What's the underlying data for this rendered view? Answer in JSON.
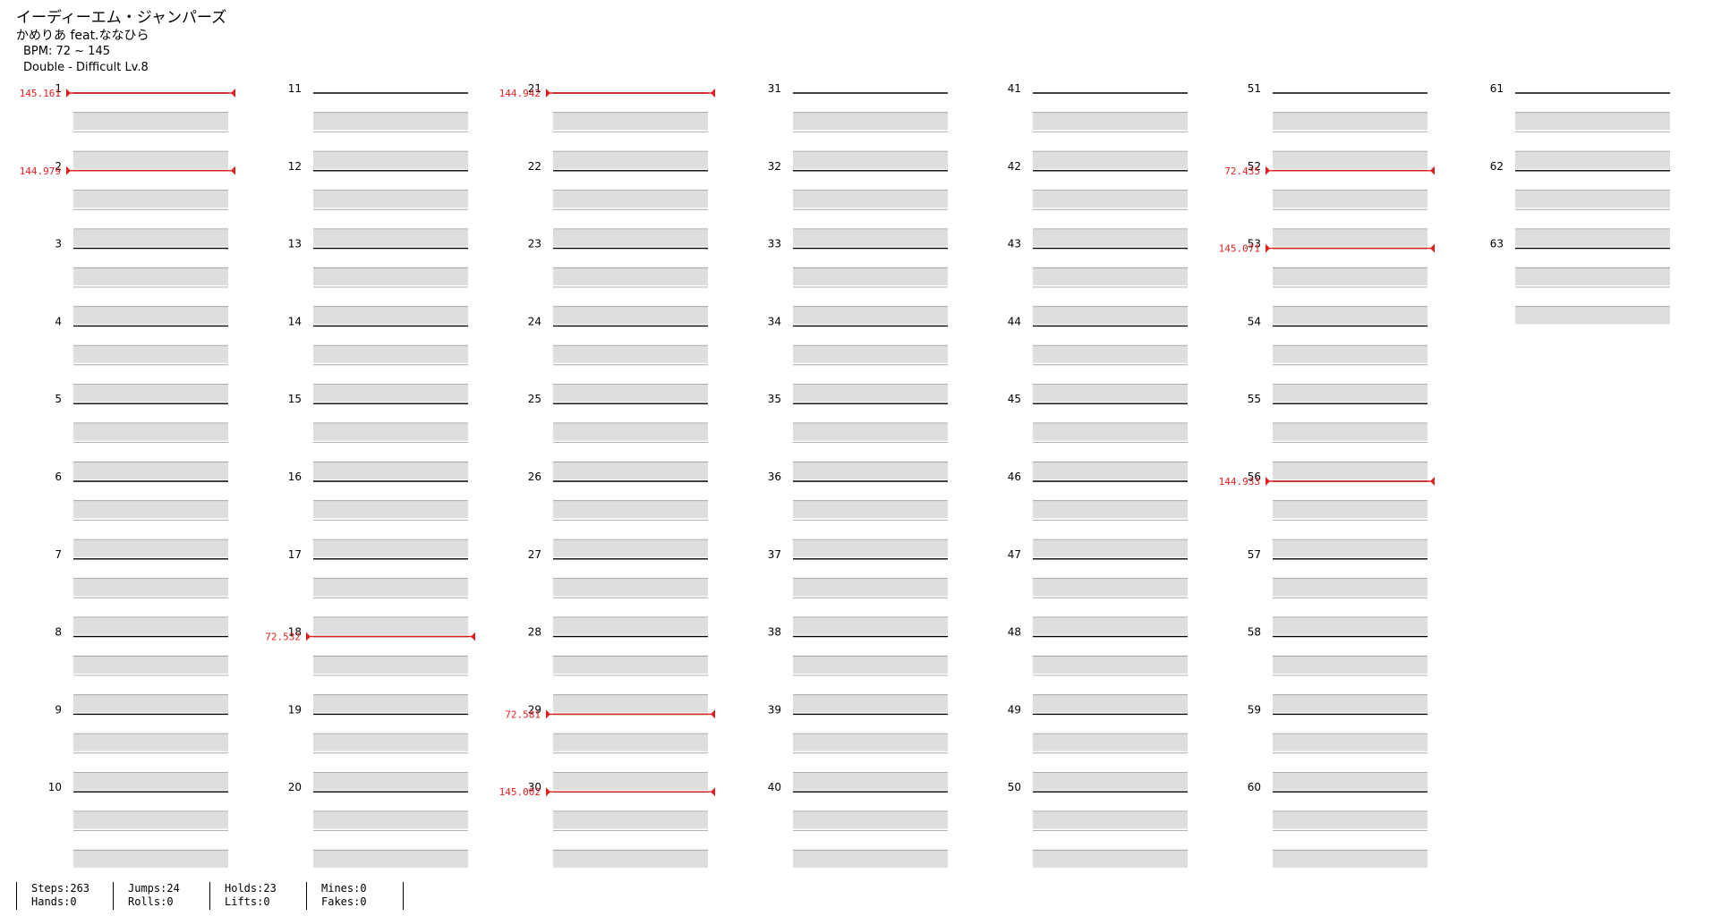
{
  "song": {
    "title": "イーディーエム・ジャンパーズ",
    "artist": "かめりあ feat.ななひら",
    "bpm_display": "BPM: 72 ~ 145",
    "difficulty": "Double - Difficult  Lv.8"
  },
  "colors": {
    "arrow_red": "#e8383f",
    "arrow_blue": "#2f63e6",
    "arrow_yellow": "#f2d22a",
    "hold_green": "#8fe08a",
    "bpm_line": "#e22020",
    "lane_shade": "#dedede"
  },
  "measure_count": 63,
  "bpm_changes": [
    {
      "measure": 1,
      "beat": 0,
      "label": "145.161"
    },
    {
      "measure": 2,
      "beat": 0,
      "label": "144.979"
    },
    {
      "measure": 18,
      "beat": 0,
      "label": "72.532"
    },
    {
      "measure": 21,
      "beat": 0,
      "label": "144.942"
    },
    {
      "measure": 29,
      "beat": 0,
      "label": "72.581"
    },
    {
      "measure": 30,
      "beat": 0,
      "label": "145.002"
    },
    {
      "measure": 52,
      "beat": 0,
      "label": "72.435"
    },
    {
      "measure": 53,
      "beat": 0,
      "label": "145.071"
    },
    {
      "measure": 56,
      "beat": 0,
      "label": "144.933"
    }
  ],
  "stats": [
    [
      "Steps:263",
      "Hands:0"
    ],
    [
      "Jumps:24",
      "Rolls:0"
    ],
    [
      "Holds:23",
      "Lifts:0"
    ],
    [
      "Mines:0",
      "Fakes:0"
    ]
  ]
}
